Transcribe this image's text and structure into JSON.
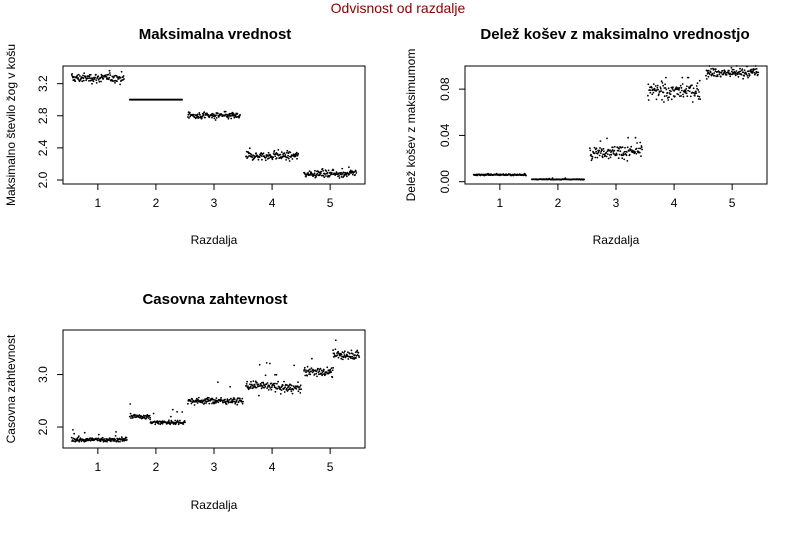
{
  "page": {
    "main_title": "Odvisnost od razdalje",
    "title_color": "#8b0000"
  },
  "chart_data": [
    {
      "type": "scatter",
      "title": "Maksimalna vrednost",
      "xlabel": "Razdalja",
      "ylabel": "Maksimalno število žog v košu",
      "xlim": [
        0.4,
        5.6
      ],
      "ylim": [
        1.95,
        3.42
      ],
      "xticks": [
        1,
        2,
        3,
        4,
        5
      ],
      "yticks": [
        2.0,
        2.4,
        2.8,
        3.2
      ],
      "ytick_labels": [
        "2.0",
        "2.4",
        "2.8",
        "3.2"
      ],
      "groups": [
        {
          "x": 1,
          "center": 3.27,
          "spread": 0.04,
          "min": 3.15,
          "max": 3.36
        },
        {
          "x": 2,
          "center": 3.0,
          "spread": 0.0,
          "min": 3.0,
          "max": 3.0
        },
        {
          "x": 3,
          "center": 2.8,
          "spread": 0.03,
          "min": 2.72,
          "max": 2.88
        },
        {
          "x": 4,
          "center": 2.3,
          "spread": 0.035,
          "min": 2.2,
          "max": 2.4
        },
        {
          "x": 5,
          "center": 2.08,
          "spread": 0.03,
          "min": 2.02,
          "max": 2.16
        }
      ]
    },
    {
      "type": "scatter",
      "title": "Delež košev z maksimalno vrednostjo",
      "xlabel": "Razdalja",
      "ylabel": "Delež košev z maksimumom",
      "xlim": [
        0.4,
        5.6
      ],
      "ylim": [
        -0.002,
        0.1
      ],
      "xticks": [
        1,
        2,
        3,
        4,
        5
      ],
      "yticks": [
        0.0,
        0.04,
        0.08
      ],
      "ytick_labels": [
        "0.00",
        "0.04",
        "0.08"
      ],
      "groups": [
        {
          "x": 1,
          "center": 0.006,
          "spread": 0.0005,
          "min": 0.005,
          "max": 0.007
        },
        {
          "x": 2,
          "center": 0.002,
          "spread": 0.0002,
          "min": 0.001,
          "max": 0.003
        },
        {
          "x": 3,
          "center": 0.026,
          "spread": 0.004,
          "min": 0.015,
          "max": 0.038
        },
        {
          "x": 4,
          "center": 0.078,
          "spread": 0.005,
          "min": 0.064,
          "max": 0.09
        },
        {
          "x": 5,
          "center": 0.094,
          "spread": 0.003,
          "min": 0.086,
          "max": 0.1
        }
      ]
    },
    {
      "type": "scatter",
      "title": "Casovna zahtevnost",
      "xlabel": "Razdalja",
      "ylabel": "Casovna zahtevnost",
      "xlim": [
        0.4,
        5.6
      ],
      "ylim": [
        1.6,
        3.85
      ],
      "xticks": [
        1,
        2,
        3,
        4,
        5
      ],
      "yticks": [
        2.0,
        3.0
      ],
      "ytick_labels": [
        "2.0",
        "3.0"
      ],
      "groups": [
        {
          "x": 1,
          "segments": [
            [
              0.55,
              1.05,
              1.76
            ],
            [
              1.05,
              1.5,
              1.76
            ]
          ],
          "spread": 0.03,
          "min": 1.72,
          "max": 2.02
        },
        {
          "x": 2,
          "segments": [
            [
              1.55,
              1.9,
              2.2
            ],
            [
              1.9,
              2.5,
              2.09
            ]
          ],
          "spread": 0.03,
          "min": 2.05,
          "max": 2.5
        },
        {
          "x": 3,
          "segments": [
            [
              2.55,
              3.0,
              2.5
            ],
            [
              3.0,
              3.5,
              2.5
            ]
          ],
          "spread": 0.04,
          "min": 2.42,
          "max": 3.05
        },
        {
          "x": 4,
          "segments": [
            [
              3.55,
              4.05,
              2.78
            ],
            [
              4.05,
              4.5,
              2.75
            ]
          ],
          "spread": 0.06,
          "min": 2.6,
          "max": 3.4
        },
        {
          "x": 5,
          "segments": [
            [
              4.55,
              5.05,
              3.05
            ],
            [
              5.05,
              5.5,
              3.38
            ]
          ],
          "spread": 0.06,
          "min": 2.95,
          "max": 3.75
        }
      ]
    }
  ]
}
